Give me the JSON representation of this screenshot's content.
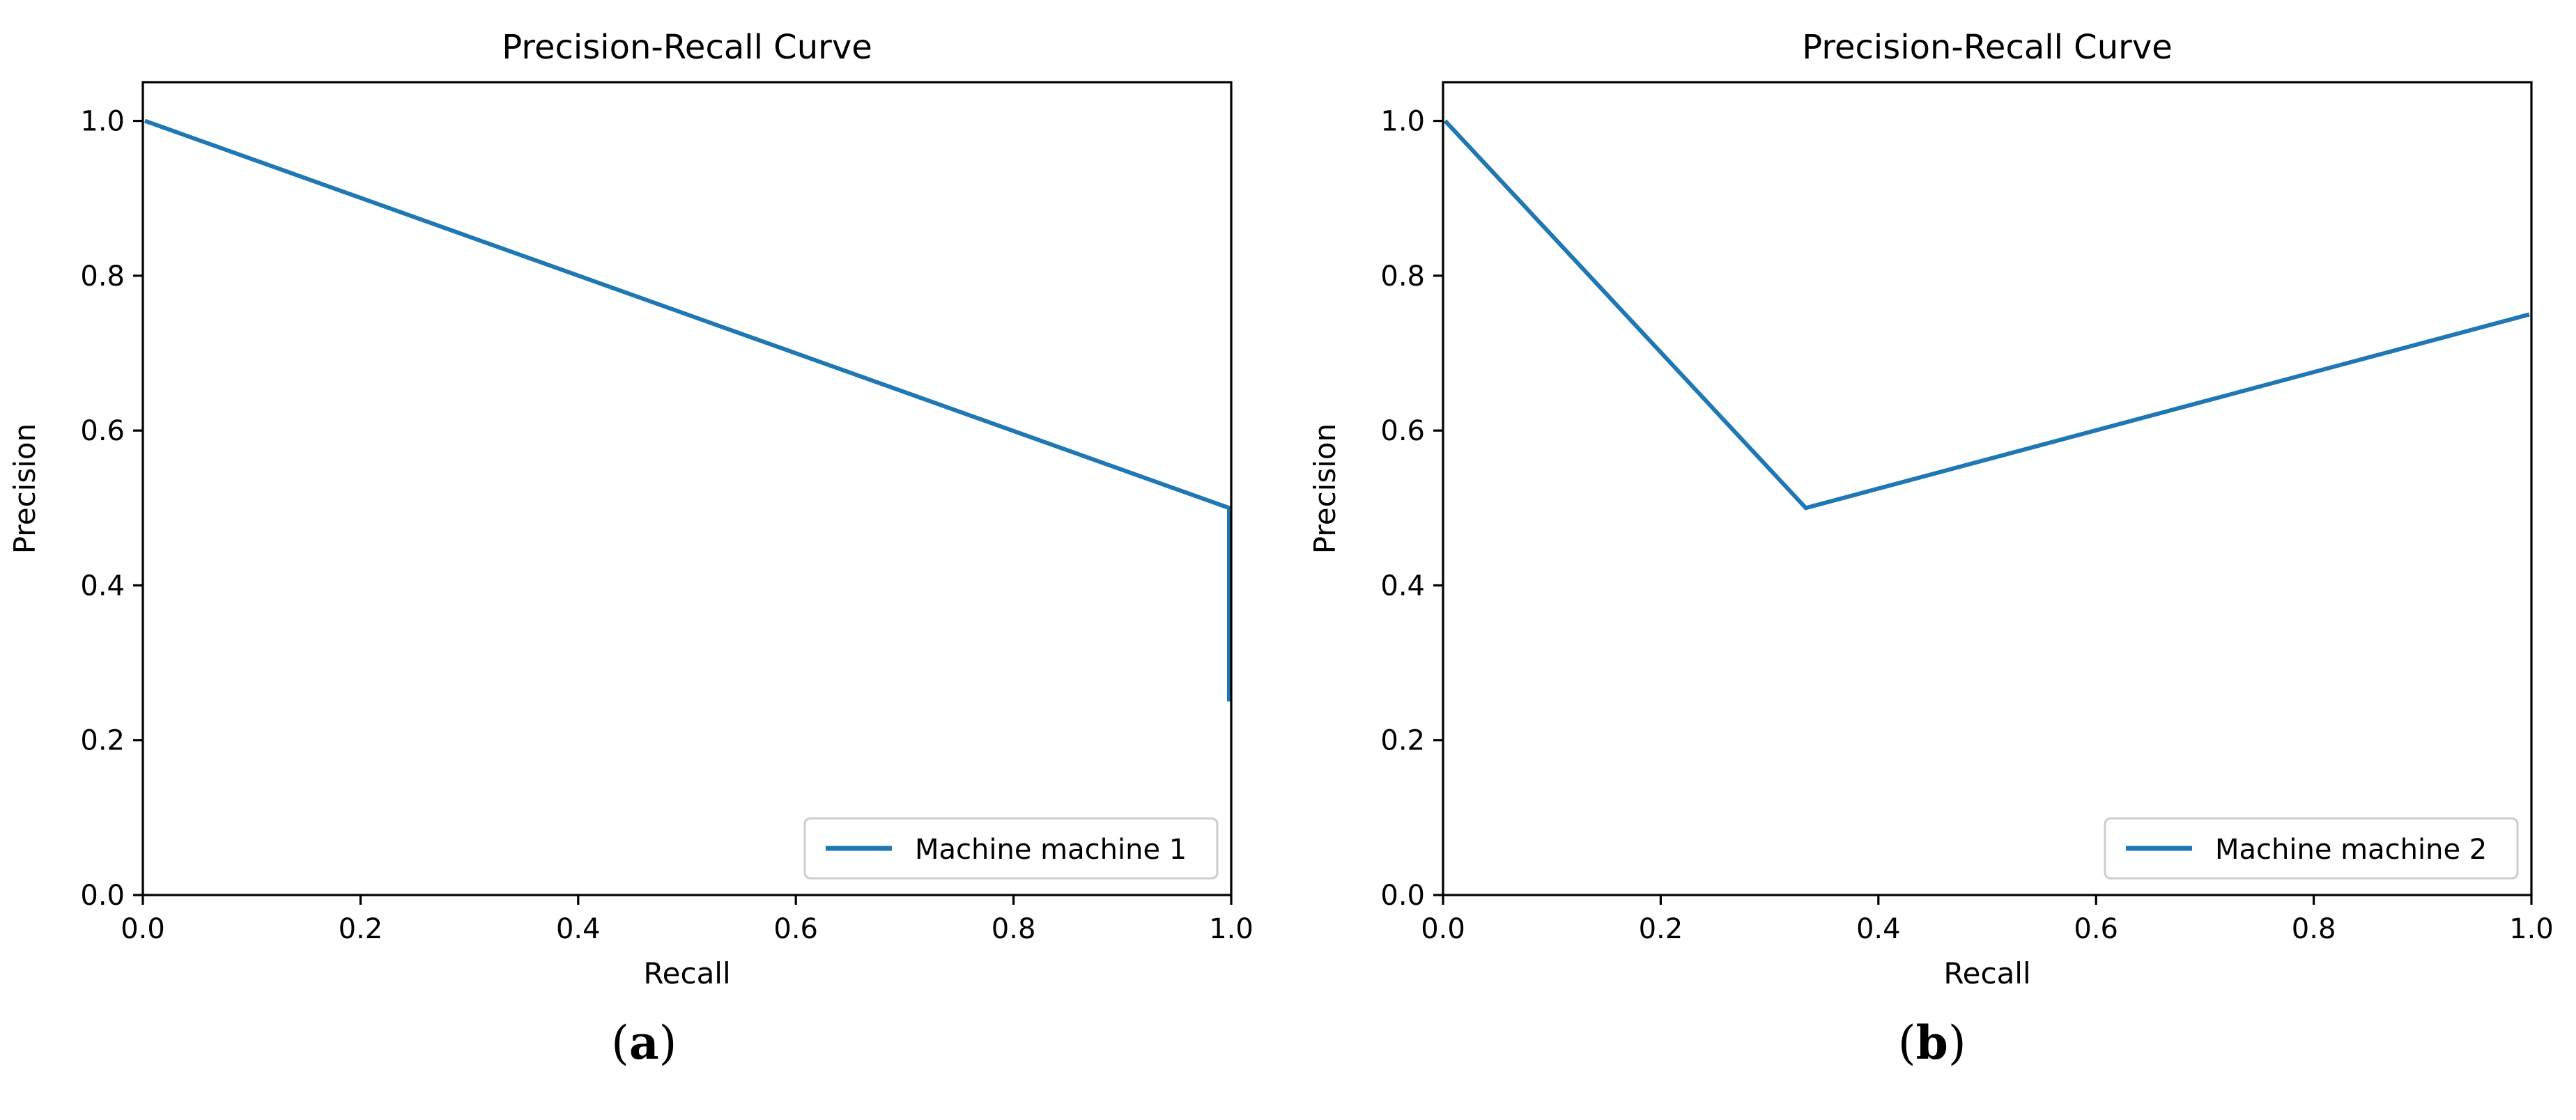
{
  "figure": {
    "background": "#ffffff",
    "captions": [
      {
        "open": "(",
        "letter": "a",
        "close": ")"
      },
      {
        "open": "(",
        "letter": "b",
        "close": ")"
      }
    ]
  },
  "chart_data": [
    {
      "type": "line",
      "title": "Precision-Recall Curve",
      "xlabel": "Recall",
      "ylabel": "Precision",
      "xlim": [
        0.0,
        1.0
      ],
      "ylim": [
        0.0,
        1.05
      ],
      "xticks": [
        "0.0",
        "0.2",
        "0.4",
        "0.6",
        "0.8",
        "1.0"
      ],
      "yticks": [
        "0.0",
        "0.2",
        "0.4",
        "0.6",
        "0.8",
        "1.0"
      ],
      "grid": false,
      "legend_position": "lower right",
      "line_color": "#1f77b4",
      "axis_color": "#000000",
      "legend_border_color": "#cccccc",
      "series": [
        {
          "name": "Machine machine 1",
          "points": [
            [
              0.0,
              1.0
            ],
            [
              1.0,
              0.5
            ],
            [
              1.0,
              0.25
            ]
          ]
        }
      ]
    },
    {
      "type": "line",
      "title": "Precision-Recall Curve",
      "xlabel": "Recall",
      "ylabel": "Precision",
      "xlim": [
        0.0,
        1.0
      ],
      "ylim": [
        0.0,
        1.05
      ],
      "xticks": [
        "0.0",
        "0.2",
        "0.4",
        "0.6",
        "0.8",
        "1.0"
      ],
      "yticks": [
        "0.0",
        "0.2",
        "0.4",
        "0.6",
        "0.8",
        "1.0"
      ],
      "grid": false,
      "legend_position": "lower right",
      "line_color": "#1f77b4",
      "axis_color": "#000000",
      "legend_border_color": "#cccccc",
      "series": [
        {
          "name": "Machine machine 2",
          "points": [
            [
              0.0,
              1.0
            ],
            [
              0.3333,
              0.5
            ],
            [
              1.0,
              0.75
            ]
          ]
        }
      ]
    }
  ]
}
